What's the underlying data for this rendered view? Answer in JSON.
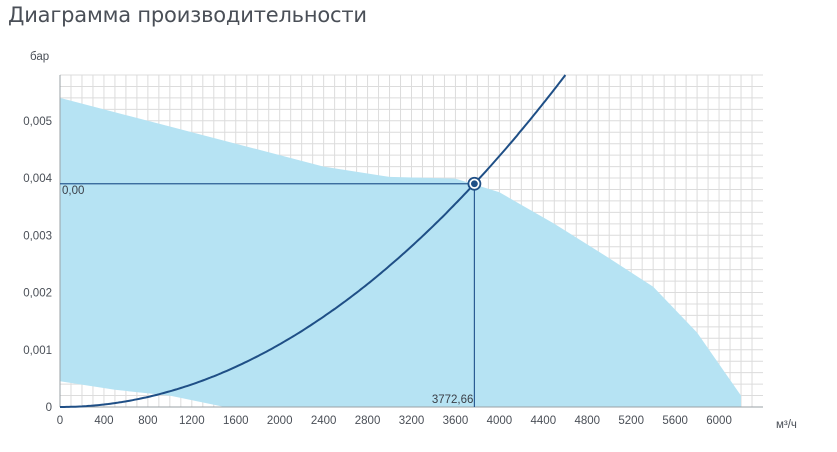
{
  "page": {
    "title": "Диаграмма производительности"
  },
  "chart_data": {
    "type": "line",
    "title": "Диаграмма производительности",
    "xlabel": "м³/ч",
    "ylabel": "бар",
    "xlim": [
      0,
      6400
    ],
    "ylim": [
      0,
      0.0058
    ],
    "grid": true,
    "x_ticks": [
      0,
      400,
      800,
      1200,
      1600,
      2000,
      2400,
      2800,
      3200,
      3600,
      4000,
      4400,
      4800,
      5200,
      5600,
      6000
    ],
    "x_tick_labels": [
      "0",
      "400",
      "800",
      "1200",
      "1600",
      "2000",
      "2400",
      "2800",
      "3200",
      "3600",
      "4000",
      "4400",
      "4800",
      "5200",
      "5600",
      "6000"
    ],
    "y_ticks": [
      0,
      0.001,
      0.002,
      0.003,
      0.004,
      0.005
    ],
    "y_tick_labels": [
      "0",
      "0,001",
      "0,002",
      "0,003",
      "0,004",
      "0,005"
    ],
    "operating_area": {
      "upper": [
        [
          0,
          0.0054
        ],
        [
          600,
          0.0051
        ],
        [
          1200,
          0.0048
        ],
        [
          1800,
          0.0045
        ],
        [
          2400,
          0.0042
        ],
        [
          3000,
          0.00402
        ],
        [
          3600,
          0.00399
        ],
        [
          4000,
          0.00375
        ],
        [
          4500,
          0.0032
        ],
        [
          5000,
          0.0026
        ],
        [
          5400,
          0.0021
        ],
        [
          5800,
          0.0013
        ],
        [
          6200,
          0.0002
        ]
      ],
      "lower": [
        [
          6200,
          0
        ],
        [
          1500,
          0
        ],
        [
          1000,
          0.0002
        ],
        [
          500,
          0.0003
        ],
        [
          0,
          0.00045
        ]
      ],
      "color": "#b6e3f3"
    },
    "series": [
      {
        "type": "system-curve",
        "equation": "y = k * x^2",
        "through": [
          3772.66,
          0.0039
        ],
        "color": "#1f4f86"
      }
    ],
    "operating_point": {
      "x": 3772.66,
      "y": 0.0039,
      "x_label": "3772,66",
      "y_label": "0,00"
    },
    "colors": {
      "curve": "#1f4f86",
      "area": "#b6e3f3",
      "grid": "#dcdcdc",
      "guide": "#2b5d93"
    }
  }
}
